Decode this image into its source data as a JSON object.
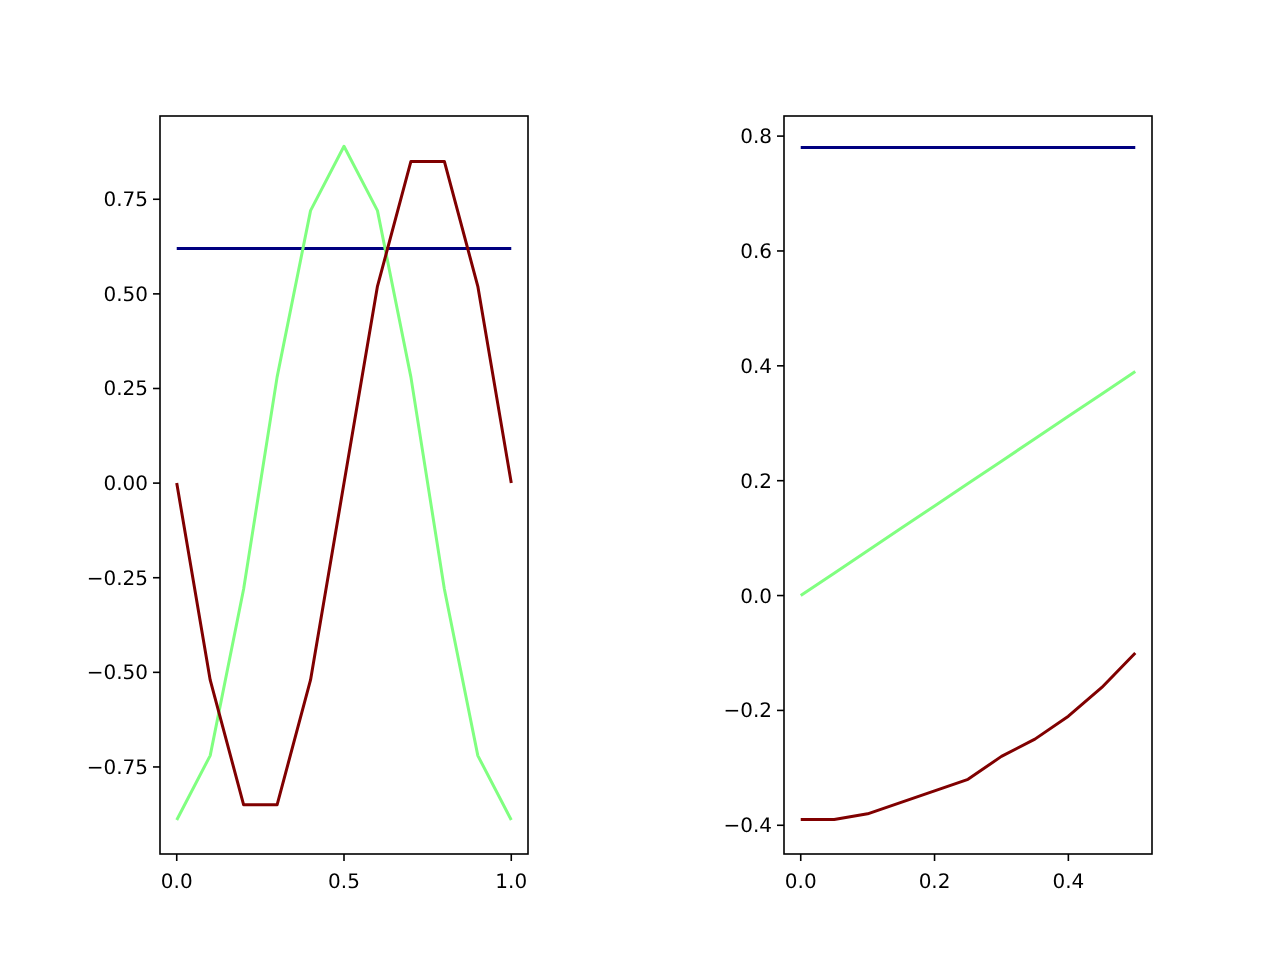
{
  "chart_data": [
    {
      "type": "line",
      "x": [
        0,
        0.1,
        0.2,
        0.3,
        0.4,
        0.5,
        0.6,
        0.7,
        0.8,
        0.9,
        1.0
      ],
      "xlim": [
        -0.05,
        1.05
      ],
      "ylim": [
        -0.98,
        0.97
      ],
      "xticks": [
        {
          "value": 0,
          "label": "0.0"
        },
        {
          "value": 0.5,
          "label": "0.5"
        },
        {
          "value": 1,
          "label": "1.0"
        }
      ],
      "yticks": [
        {
          "value": -0.75,
          "label": "−0.75"
        },
        {
          "value": -0.5,
          "label": "−0.50"
        },
        {
          "value": -0.25,
          "label": "−0.25"
        },
        {
          "value": 0,
          "label": "0.00"
        },
        {
          "value": 0.25,
          "label": "0.25"
        },
        {
          "value": 0.5,
          "label": "0.50"
        },
        {
          "value": 0.75,
          "label": "0.75"
        }
      ],
      "series": [
        {
          "color": "#000080",
          "values": [
            0.62,
            0.62,
            0.62,
            0.62,
            0.62,
            0.62,
            0.62,
            0.62,
            0.62,
            0.62,
            0.62
          ]
        },
        {
          "color": "#80ff80",
          "values": [
            -0.89,
            -0.72,
            -0.28,
            0.28,
            0.72,
            0.89,
            0.72,
            0.28,
            -0.28,
            -0.72,
            -0.89
          ]
        },
        {
          "color": "#800000",
          "values": [
            0,
            -0.52,
            -0.85,
            -0.85,
            -0.52,
            0,
            0.52,
            0.85,
            0.85,
            0.52,
            0
          ]
        }
      ]
    },
    {
      "type": "line",
      "x": [
        0,
        0.05,
        0.1,
        0.15,
        0.2,
        0.25,
        0.3,
        0.35,
        0.4,
        0.45,
        0.5
      ],
      "xlim": [
        -0.025,
        0.525
      ],
      "ylim": [
        -0.45,
        0.835
      ],
      "xticks": [
        {
          "value": 0,
          "label": "0.0"
        },
        {
          "value": 0.2,
          "label": "0.2"
        },
        {
          "value": 0.4,
          "label": "0.4"
        }
      ],
      "yticks": [
        {
          "value": -0.4,
          "label": "−0.4"
        },
        {
          "value": -0.2,
          "label": "−0.2"
        },
        {
          "value": 0,
          "label": "0.0"
        },
        {
          "value": 0.2,
          "label": "0.2"
        },
        {
          "value": 0.4,
          "label": "0.4"
        },
        {
          "value": 0.6,
          "label": "0.6"
        },
        {
          "value": 0.8,
          "label": "0.8"
        }
      ],
      "series": [
        {
          "color": "#000080",
          "values": [
            0.78,
            0.78,
            0.78,
            0.78,
            0.78,
            0.78,
            0.78,
            0.78,
            0.78,
            0.78,
            0.78
          ]
        },
        {
          "color": "#80ff80",
          "values": [
            0,
            0.039,
            0.078,
            0.117,
            0.156,
            0.195,
            0.234,
            0.273,
            0.312,
            0.351,
            0.39
          ]
        },
        {
          "color": "#800000",
          "values": [
            -0.39,
            -0.39,
            -0.38,
            -0.36,
            -0.34,
            -0.32,
            -0.28,
            -0.25,
            -0.21,
            -0.16,
            -0.1
          ]
        }
      ]
    }
  ]
}
